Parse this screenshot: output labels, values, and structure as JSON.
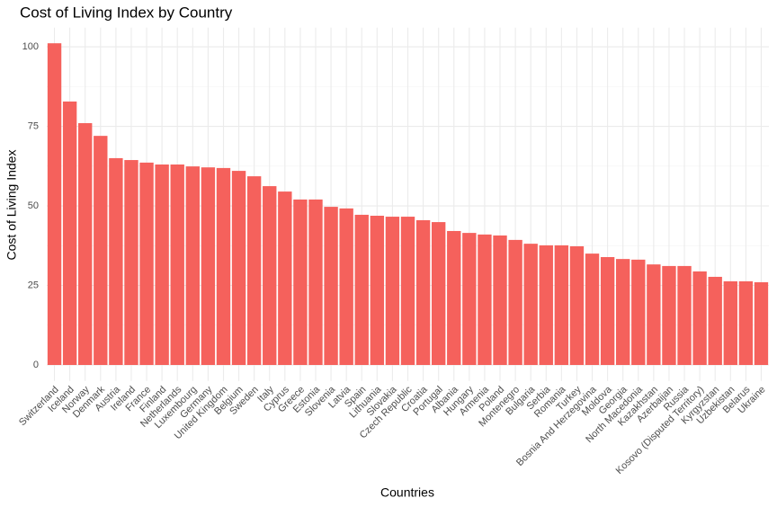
{
  "chart_data": {
    "type": "bar",
    "title": "Cost of Living Index by Country",
    "x_label": "Countries",
    "y_label": "Cost of Living Index",
    "categories": [
      "Switzerland",
      "Iceland",
      "Norway",
      "Denmark",
      "Austria",
      "Ireland",
      "France",
      "Finland",
      "Netherlands",
      "Luxembourg",
      "Germany",
      "United Kingdom",
      "Belgium",
      "Sweden",
      "Italy",
      "Cyprus",
      "Greece",
      "Estonia",
      "Slovenia",
      "Latvia",
      "Spain",
      "Lithuania",
      "Slovakia",
      "Czech Republic",
      "Croatia",
      "Portugal",
      "Albania",
      "Hungary",
      "Armenia",
      "Poland",
      "Montenegro",
      "Bulgaria",
      "Serbia",
      "Romania",
      "Turkey",
      "Bosnia And Herzegovina",
      "Moldova",
      "Georgia",
      "North Macedonia",
      "Kazakhstan",
      "Azerbaijan",
      "Russia",
      "Kosovo (Disputed Territory)",
      "Kyrgyzstan",
      "Uzbekistan",
      "Belarus",
      "Ukraine"
    ],
    "values": [
      101.1,
      82.8,
      76.0,
      72.0,
      65.0,
      64.4,
      63.6,
      63.0,
      63.0,
      62.4,
      62.1,
      61.9,
      61.0,
      59.3,
      56.2,
      54.5,
      52.0,
      52.0,
      49.7,
      49.2,
      47.2,
      46.9,
      46.6,
      46.6,
      45.5,
      44.9,
      42.1,
      41.5,
      41.0,
      40.7,
      39.3,
      38.1,
      37.6,
      37.6,
      37.3,
      35.0,
      33.9,
      33.3,
      33.1,
      31.6,
      31.1,
      31.1,
      29.4,
      27.7,
      26.3,
      26.3,
      26.0
    ],
    "color": "#f5615c",
    "ylim": [
      -5,
      106
    ],
    "yticks": [
      0,
      25,
      50,
      75,
      100
    ],
    "grid": true
  }
}
